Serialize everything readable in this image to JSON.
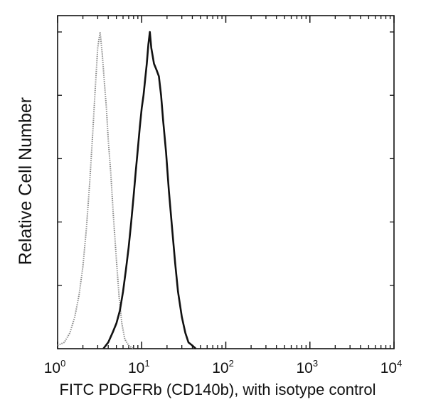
{
  "chart_data": {
    "type": "line",
    "title": "",
    "xlabel": "FITC PDGFRb (CD140b), with isotype control",
    "ylabel": "Relative Cell Number",
    "x_scale": "log",
    "xlim": [
      1,
      10000
    ],
    "ylim": [
      0,
      1
    ],
    "x_ticks": [
      {
        "base": "10",
        "exp": "0",
        "value": 1
      },
      {
        "base": "10",
        "exp": "1",
        "value": 10
      },
      {
        "base": "10",
        "exp": "2",
        "value": 100
      },
      {
        "base": "10",
        "exp": "3",
        "value": 1000
      },
      {
        "base": "10",
        "exp": "4",
        "value": 10000
      }
    ],
    "grid": false,
    "series": [
      {
        "style": "dotted-gray",
        "color": "#8a8a8a",
        "x": [
          1.0,
          1.2,
          1.4,
          1.6,
          1.8,
          2.0,
          2.2,
          2.4,
          2.6,
          2.8,
          3.0,
          3.2,
          3.4,
          3.6,
          3.8,
          4.0,
          4.3,
          4.6,
          5.0,
          5.4,
          5.8,
          6.3,
          7.0,
          8.0
        ],
        "y": [
          0.01,
          0.02,
          0.05,
          0.1,
          0.17,
          0.26,
          0.38,
          0.52,
          0.67,
          0.82,
          0.95,
          1.0,
          0.93,
          0.84,
          0.76,
          0.66,
          0.55,
          0.42,
          0.28,
          0.16,
          0.08,
          0.03,
          0.01,
          0.0
        ]
      },
      {
        "style": "solid-black",
        "color": "#111111",
        "x": [
          3.5,
          4.0,
          4.5,
          5.0,
          5.5,
          6.0,
          6.5,
          7.0,
          7.5,
          8.0,
          8.5,
          9.0,
          9.5,
          10.0,
          10.5,
          11.0,
          11.5,
          12.0,
          12.5,
          13.0,
          14.0,
          15.0,
          16.0,
          17.0,
          18.0,
          19.5,
          21.0,
          23.0,
          25.0,
          27.0,
          30.0,
          33.0,
          36.0,
          40.0,
          44.0
        ],
        "y": [
          0.0,
          0.02,
          0.05,
          0.08,
          0.12,
          0.18,
          0.25,
          0.32,
          0.4,
          0.48,
          0.56,
          0.63,
          0.7,
          0.76,
          0.8,
          0.85,
          0.9,
          0.96,
          1.0,
          0.95,
          0.9,
          0.88,
          0.86,
          0.8,
          0.72,
          0.62,
          0.5,
          0.38,
          0.27,
          0.18,
          0.1,
          0.05,
          0.02,
          0.01,
          0.0
        ]
      }
    ]
  }
}
